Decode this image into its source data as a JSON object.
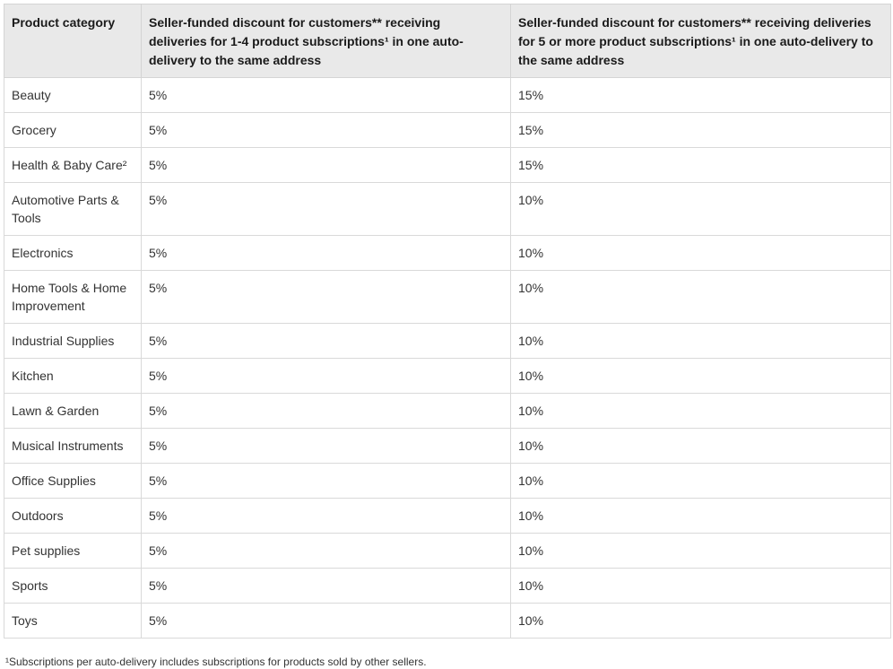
{
  "colors": {
    "header_bg": "#e9e9e9",
    "border": "#d9d9d9",
    "header_text": "#1a1a1a",
    "body_text": "#333333"
  },
  "table": {
    "columns": [
      "Product category",
      "Seller-funded discount for customers** receiving deliveries for 1-4 product subscriptions¹ in one auto-delivery to the same address",
      "Seller-funded discount for customers** receiving deliveries for 5 or more product subscriptions¹ in one auto-delivery to the same address"
    ],
    "rows": [
      {
        "category": "Beauty",
        "discount_1_4": "5%",
        "discount_5_plus": "15%"
      },
      {
        "category": "Grocery",
        "discount_1_4": "5%",
        "discount_5_plus": "15%"
      },
      {
        "category": "Health & Baby Care²",
        "discount_1_4": "5%",
        "discount_5_plus": "15%"
      },
      {
        "category": "Automotive Parts & Tools",
        "discount_1_4": "5%",
        "discount_5_plus": "10%"
      },
      {
        "category": "Electronics",
        "discount_1_4": "5%",
        "discount_5_plus": "10%"
      },
      {
        "category": "Home Tools & Home Improvement",
        "discount_1_4": "5%",
        "discount_5_plus": "10%"
      },
      {
        "category": "Industrial Supplies",
        "discount_1_4": "5%",
        "discount_5_plus": "10%"
      },
      {
        "category": "Kitchen",
        "discount_1_4": "5%",
        "discount_5_plus": "10%"
      },
      {
        "category": "Lawn & Garden",
        "discount_1_4": "5%",
        "discount_5_plus": "10%"
      },
      {
        "category": "Musical Instruments",
        "discount_1_4": "5%",
        "discount_5_plus": "10%"
      },
      {
        "category": "Office Supplies",
        "discount_1_4": "5%",
        "discount_5_plus": "10%"
      },
      {
        "category": "Outdoors",
        "discount_1_4": "5%",
        "discount_5_plus": "10%"
      },
      {
        "category": "Pet supplies",
        "discount_1_4": "5%",
        "discount_5_plus": "10%"
      },
      {
        "category": "Sports",
        "discount_1_4": "5%",
        "discount_5_plus": "10%"
      },
      {
        "category": "Toys",
        "discount_1_4": "5%",
        "discount_5_plus": "10%"
      }
    ]
  },
  "footnote": "¹Subscriptions per auto-delivery includes subscriptions for products sold by other sellers."
}
